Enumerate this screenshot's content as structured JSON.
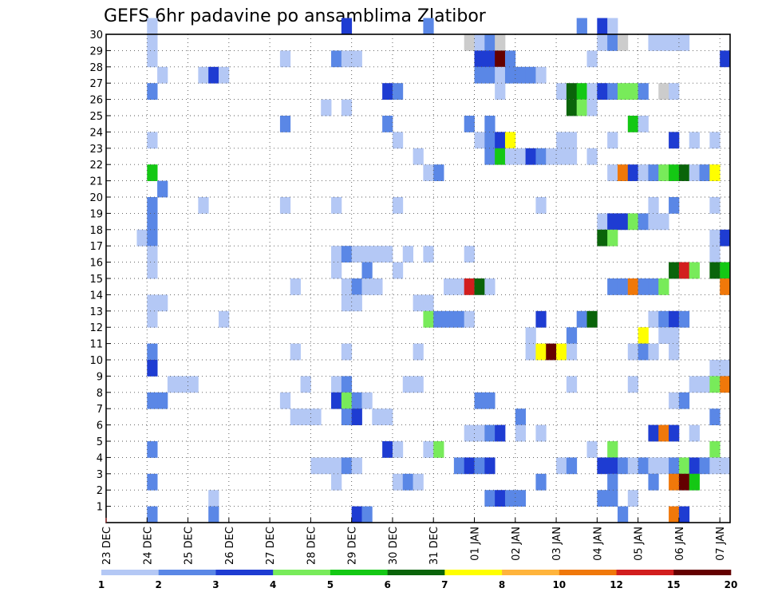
{
  "chart_data": {
    "type": "heatmap",
    "title": "GEFS 6hr padavine po ansamblima Zlatibor",
    "xlabel": "",
    "ylabel": "",
    "y_ticks": [
      "1",
      "2",
      "3",
      "4",
      "5",
      "6",
      "7",
      "8",
      "9",
      "10",
      "11",
      "12",
      "13",
      "14",
      "15",
      "16",
      "17",
      "18",
      "19",
      "20",
      "21",
      "22",
      "23",
      "24",
      "25",
      "26",
      "27",
      "28",
      "29",
      "30"
    ],
    "x_ticks": [
      "23 DEC",
      "24 DEC",
      "25 DEC",
      "26 DEC",
      "27 DEC",
      "28 DEC",
      "29 DEC",
      "30 DEC",
      "31 DEC",
      "01 JAN",
      "02 JAN",
      "03 JAN",
      "04 JAN",
      "05 JAN",
      "06 JAN",
      "07 JAN"
    ],
    "x_range_steps": [
      0,
      61
    ],
    "y_range_members": [
      0,
      30
    ],
    "steps_per_day": 4,
    "colorbar": {
      "labels": [
        "1",
        "2",
        "3",
        "4",
        "5",
        "6",
        "7",
        "8",
        "10",
        "12",
        "15",
        "20"
      ],
      "colors": [
        "#b4c8f5",
        "#5a87e6",
        "#1e3cd2",
        "#78eb5a",
        "#14c814",
        "#0a640a",
        "#ffff00",
        "#ffb43c",
        "#f0780a",
        "#d21e1e",
        "#640000"
      ]
    },
    "cells": [
      [
        30,
        4,
        1
      ],
      [
        30,
        23,
        3
      ],
      [
        30,
        31,
        2
      ],
      [
        30,
        46,
        2
      ],
      [
        30,
        48,
        3
      ],
      [
        30,
        49,
        1
      ],
      [
        29,
        4,
        1
      ],
      [
        29,
        35,
        14
      ],
      [
        29,
        36,
        1
      ],
      [
        29,
        37,
        2
      ],
      [
        29,
        38,
        14
      ],
      [
        29,
        48,
        1
      ],
      [
        29,
        49,
        2
      ],
      [
        29,
        50,
        12
      ],
      [
        29,
        53,
        1
      ],
      [
        29,
        54,
        1
      ],
      [
        29,
        55,
        1
      ],
      [
        29,
        56,
        1
      ],
      [
        28,
        4,
        1
      ],
      [
        28,
        17,
        1
      ],
      [
        28,
        22,
        2
      ],
      [
        28,
        23,
        1
      ],
      [
        28,
        24,
        1
      ],
      [
        28,
        36,
        3
      ],
      [
        28,
        37,
        3
      ],
      [
        28,
        38,
        11
      ],
      [
        28,
        39,
        2
      ],
      [
        28,
        47,
        1
      ],
      [
        28,
        60,
        3
      ],
      [
        27,
        5,
        1
      ],
      [
        27,
        9,
        1
      ],
      [
        27,
        10,
        3
      ],
      [
        27,
        11,
        1
      ],
      [
        27,
        36,
        2
      ],
      [
        27,
        37,
        2
      ],
      [
        27,
        38,
        1
      ],
      [
        27,
        39,
        2
      ],
      [
        27,
        40,
        2
      ],
      [
        27,
        41,
        2
      ],
      [
        27,
        42,
        1
      ],
      [
        26,
        4,
        2
      ],
      [
        26,
        27,
        3
      ],
      [
        26,
        28,
        2
      ],
      [
        26,
        38,
        1
      ],
      [
        26,
        44,
        1
      ],
      [
        26,
        45,
        6
      ],
      [
        26,
        46,
        5
      ],
      [
        26,
        47,
        1
      ],
      [
        26,
        48,
        3
      ],
      [
        26,
        49,
        2
      ],
      [
        26,
        50,
        4
      ],
      [
        26,
        51,
        4
      ],
      [
        26,
        52,
        2
      ],
      [
        26,
        54,
        12
      ],
      [
        26,
        55,
        1
      ],
      [
        25,
        21,
        1
      ],
      [
        25,
        23,
        1
      ],
      [
        25,
        45,
        6
      ],
      [
        25,
        46,
        4
      ],
      [
        25,
        47,
        1
      ],
      [
        24,
        17,
        2
      ],
      [
        24,
        27,
        2
      ],
      [
        24,
        35,
        2
      ],
      [
        24,
        37,
        2
      ],
      [
        24,
        51,
        5
      ],
      [
        24,
        52,
        1
      ],
      [
        23,
        4,
        1
      ],
      [
        23,
        28,
        1
      ],
      [
        23,
        36,
        1
      ],
      [
        23,
        37,
        2
      ],
      [
        23,
        38,
        3
      ],
      [
        23,
        39,
        7
      ],
      [
        23,
        44,
        1
      ],
      [
        23,
        45,
        1
      ],
      [
        23,
        49,
        1
      ],
      [
        23,
        55,
        3
      ],
      [
        23,
        57,
        1
      ],
      [
        23,
        59,
        1
      ],
      [
        22,
        30,
        1
      ],
      [
        22,
        37,
        2
      ],
      [
        22,
        38,
        5
      ],
      [
        22,
        39,
        1
      ],
      [
        22,
        40,
        1
      ],
      [
        22,
        41,
        3
      ],
      [
        22,
        42,
        2
      ],
      [
        22,
        43,
        1
      ],
      [
        22,
        44,
        1
      ],
      [
        22,
        45,
        1
      ],
      [
        22,
        47,
        1
      ],
      [
        21,
        4,
        5
      ],
      [
        21,
        31,
        1
      ],
      [
        21,
        32,
        2
      ],
      [
        21,
        49,
        1
      ],
      [
        21,
        50,
        9
      ],
      [
        21,
        51,
        3
      ],
      [
        21,
        52,
        1
      ],
      [
        21,
        53,
        2
      ],
      [
        21,
        54,
        4
      ],
      [
        21,
        55,
        5
      ],
      [
        21,
        56,
        6
      ],
      [
        21,
        57,
        1
      ],
      [
        21,
        58,
        2
      ],
      [
        21,
        59,
        7
      ],
      [
        20,
        5,
        2
      ],
      [
        19,
        4,
        2
      ],
      [
        19,
        9,
        1
      ],
      [
        19,
        17,
        1
      ],
      [
        19,
        22,
        1
      ],
      [
        19,
        28,
        1
      ],
      [
        19,
        42,
        1
      ],
      [
        19,
        53,
        1
      ],
      [
        19,
        55,
        2
      ],
      [
        19,
        59,
        1
      ],
      [
        18,
        4,
        2
      ],
      [
        18,
        48,
        1
      ],
      [
        18,
        49,
        3
      ],
      [
        18,
        50,
        3
      ],
      [
        18,
        51,
        4
      ],
      [
        18,
        52,
        2
      ],
      [
        18,
        53,
        1
      ],
      [
        18,
        54,
        1
      ],
      [
        17,
        3,
        1
      ],
      [
        17,
        4,
        2
      ],
      [
        17,
        48,
        6
      ],
      [
        17,
        49,
        4
      ],
      [
        17,
        59,
        1
      ],
      [
        17,
        60,
        3
      ],
      [
        16,
        4,
        1
      ],
      [
        16,
        22,
        1
      ],
      [
        16,
        23,
        2
      ],
      [
        16,
        24,
        1
      ],
      [
        16,
        25,
        1
      ],
      [
        16,
        26,
        1
      ],
      [
        16,
        27,
        1
      ],
      [
        16,
        29,
        1
      ],
      [
        16,
        31,
        1
      ],
      [
        16,
        35,
        1
      ],
      [
        16,
        59,
        1
      ],
      [
        15,
        4,
        1
      ],
      [
        15,
        22,
        1
      ],
      [
        15,
        25,
        2
      ],
      [
        15,
        28,
        1
      ],
      [
        15,
        55,
        6
      ],
      [
        15,
        56,
        10
      ],
      [
        15,
        57,
        4
      ],
      [
        15,
        59,
        6
      ],
      [
        15,
        60,
        5
      ],
      [
        14,
        18,
        1
      ],
      [
        14,
        23,
        1
      ],
      [
        14,
        24,
        2
      ],
      [
        14,
        25,
        1
      ],
      [
        14,
        26,
        1
      ],
      [
        14,
        33,
        1
      ],
      [
        14,
        34,
        1
      ],
      [
        14,
        35,
        10
      ],
      [
        14,
        36,
        6
      ],
      [
        14,
        37,
        1
      ],
      [
        14,
        49,
        2
      ],
      [
        14,
        50,
        2
      ],
      [
        14,
        51,
        9
      ],
      [
        14,
        52,
        2
      ],
      [
        14,
        53,
        2
      ],
      [
        14,
        54,
        4
      ],
      [
        14,
        60,
        9
      ],
      [
        13,
        4,
        1
      ],
      [
        13,
        5,
        1
      ],
      [
        13,
        23,
        1
      ],
      [
        13,
        24,
        1
      ],
      [
        13,
        30,
        1
      ],
      [
        13,
        31,
        1
      ],
      [
        12,
        4,
        1
      ],
      [
        12,
        11,
        1
      ],
      [
        12,
        31,
        4
      ],
      [
        12,
        32,
        2
      ],
      [
        12,
        33,
        2
      ],
      [
        12,
        34,
        2
      ],
      [
        12,
        35,
        1
      ],
      [
        12,
        42,
        3
      ],
      [
        12,
        46,
        2
      ],
      [
        12,
        47,
        6
      ],
      [
        12,
        53,
        1
      ],
      [
        12,
        54,
        2
      ],
      [
        12,
        55,
        3
      ],
      [
        12,
        56,
        2
      ],
      [
        11,
        41,
        1
      ],
      [
        11,
        45,
        2
      ],
      [
        11,
        52,
        7
      ],
      [
        11,
        54,
        1
      ],
      [
        11,
        55,
        1
      ],
      [
        10,
        4,
        2
      ],
      [
        10,
        18,
        1
      ],
      [
        10,
        23,
        1
      ],
      [
        10,
        30,
        1
      ],
      [
        10,
        41,
        1
      ],
      [
        10,
        42,
        7
      ],
      [
        10,
        43,
        11
      ],
      [
        10,
        44,
        7
      ],
      [
        10,
        45,
        1
      ],
      [
        10,
        51,
        1
      ],
      [
        10,
        52,
        2
      ],
      [
        10,
        53,
        1
      ],
      [
        10,
        55,
        1
      ],
      [
        9,
        4,
        3
      ],
      [
        9,
        59,
        1
      ],
      [
        9,
        60,
        1
      ],
      [
        8,
        6,
        1
      ],
      [
        8,
        7,
        1
      ],
      [
        8,
        8,
        1
      ],
      [
        8,
        19,
        1
      ],
      [
        8,
        22,
        1
      ],
      [
        8,
        23,
        2
      ],
      [
        8,
        29,
        1
      ],
      [
        8,
        30,
        1
      ],
      [
        8,
        45,
        1
      ],
      [
        8,
        51,
        1
      ],
      [
        8,
        57,
        1
      ],
      [
        8,
        58,
        1
      ],
      [
        8,
        59,
        4
      ],
      [
        8,
        60,
        9
      ],
      [
        7,
        4,
        2
      ],
      [
        7,
        5,
        2
      ],
      [
        7,
        17,
        1
      ],
      [
        7,
        22,
        3
      ],
      [
        7,
        23,
        4
      ],
      [
        7,
        24,
        2
      ],
      [
        7,
        25,
        1
      ],
      [
        7,
        36,
        2
      ],
      [
        7,
        37,
        2
      ],
      [
        7,
        55,
        1
      ],
      [
        7,
        56,
        2
      ],
      [
        6,
        18,
        1
      ],
      [
        6,
        19,
        1
      ],
      [
        6,
        20,
        1
      ],
      [
        6,
        23,
        2
      ],
      [
        6,
        24,
        3
      ],
      [
        6,
        26,
        1
      ],
      [
        6,
        27,
        1
      ],
      [
        6,
        40,
        2
      ],
      [
        6,
        59,
        2
      ],
      [
        5,
        35,
        1
      ],
      [
        5,
        36,
        1
      ],
      [
        5,
        37,
        2
      ],
      [
        5,
        38,
        3
      ],
      [
        5,
        40,
        1
      ],
      [
        5,
        42,
        1
      ],
      [
        5,
        53,
        3
      ],
      [
        5,
        54,
        9
      ],
      [
        5,
        55,
        3
      ],
      [
        5,
        57,
        1
      ],
      [
        4,
        4,
        2
      ],
      [
        4,
        27,
        3
      ],
      [
        4,
        28,
        1
      ],
      [
        4,
        31,
        1
      ],
      [
        4,
        32,
        4
      ],
      [
        4,
        47,
        1
      ],
      [
        4,
        49,
        4
      ],
      [
        4,
        59,
        4
      ],
      [
        3,
        20,
        1
      ],
      [
        3,
        21,
        1
      ],
      [
        3,
        22,
        1
      ],
      [
        3,
        23,
        2
      ],
      [
        3,
        24,
        1
      ],
      [
        3,
        34,
        2
      ],
      [
        3,
        35,
        3
      ],
      [
        3,
        36,
        2
      ],
      [
        3,
        37,
        3
      ],
      [
        3,
        44,
        1
      ],
      [
        3,
        45,
        2
      ],
      [
        3,
        48,
        3
      ],
      [
        3,
        49,
        3
      ],
      [
        3,
        50,
        2
      ],
      [
        3,
        51,
        1
      ],
      [
        3,
        52,
        2
      ],
      [
        3,
        53,
        1
      ],
      [
        3,
        54,
        1
      ],
      [
        3,
        55,
        2
      ],
      [
        3,
        56,
        4
      ],
      [
        3,
        57,
        3
      ],
      [
        3,
        58,
        2
      ],
      [
        3,
        59,
        1
      ],
      [
        3,
        60,
        1
      ],
      [
        2,
        4,
        2
      ],
      [
        2,
        22,
        1
      ],
      [
        2,
        28,
        1
      ],
      [
        2,
        29,
        2
      ],
      [
        2,
        30,
        1
      ],
      [
        2,
        42,
        2
      ],
      [
        2,
        49,
        2
      ],
      [
        2,
        53,
        2
      ],
      [
        2,
        55,
        9
      ],
      [
        2,
        56,
        11
      ],
      [
        2,
        57,
        5
      ],
      [
        1,
        10,
        1
      ],
      [
        1,
        37,
        2
      ],
      [
        1,
        38,
        3
      ],
      [
        1,
        39,
        2
      ],
      [
        1,
        40,
        2
      ],
      [
        1,
        48,
        2
      ],
      [
        1,
        49,
        2
      ],
      [
        1,
        51,
        1
      ],
      [
        0,
        4,
        2
      ],
      [
        0,
        10,
        2
      ],
      [
        0,
        24,
        3
      ],
      [
        0,
        25,
        2
      ],
      [
        0,
        50,
        2
      ],
      [
        0,
        55,
        9
      ],
      [
        0,
        56,
        3
      ]
    ]
  }
}
